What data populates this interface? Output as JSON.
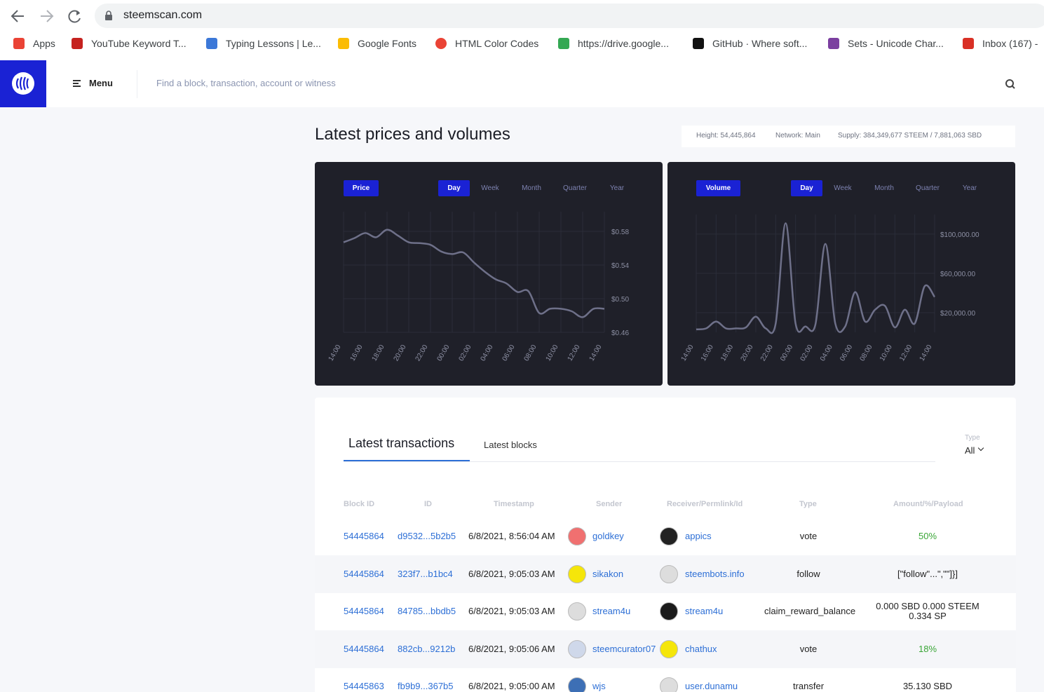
{
  "browser": {
    "url": "steemscan.com",
    "bookmarks": [
      "Apps",
      "YouTube Keyword T...",
      "Typing Lessons | Le...",
      "Google Fonts",
      "HTML Color Codes",
      "https://drive.google...",
      "GitHub · Where soft...",
      "Sets - Unicode Char...",
      "Inbox (167) -"
    ]
  },
  "header": {
    "menu": "Menu",
    "search_placeholder": "Find a block, transaction, account or witness"
  },
  "section_title": "Latest prices and volumes",
  "stats": [
    "Height: 54,445,864",
    "Network: Main",
    "Supply: 384,349,677 STEEM / 7,881,063 SBD"
  ],
  "chart_data": [
    {
      "type": "line",
      "label": "Price",
      "ranges": [
        "Day",
        "Week",
        "Month",
        "Quarter",
        "Year"
      ],
      "active_range": 0,
      "color": "#6e7089",
      "grid": true,
      "categories": [
        "14:00",
        null,
        "16:00",
        null,
        "18:00",
        null,
        "20:00",
        null,
        "22:00",
        null,
        "00:00",
        null,
        "02:00",
        null,
        "04:00",
        null,
        "06:00",
        null,
        "08:00",
        null,
        "10:00",
        null,
        "12:00",
        null,
        "14:00"
      ],
      "values": [
        0.567,
        0.572,
        0.578,
        0.573,
        0.582,
        0.575,
        0.567,
        0.566,
        0.564,
        0.556,
        0.553,
        0.555,
        0.543,
        0.532,
        0.523,
        0.518,
        0.508,
        0.509,
        0.483,
        0.488,
        0.488,
        0.485,
        0.478,
        0.488,
        0.488
      ],
      "ylim": [
        0.46,
        0.6
      ],
      "yticks": [
        {
          "value": 0.46,
          "label": "$0.46"
        },
        {
          "value": 0.5,
          "label": "$0.50"
        },
        {
          "value": 0.54,
          "label": "$0.54"
        },
        {
          "value": 0.58,
          "label": "$0.58"
        }
      ]
    },
    {
      "type": "line",
      "label": "Volume",
      "ranges": [
        "Day",
        "Week",
        "Month",
        "Quarter",
        "Year"
      ],
      "active_range": 0,
      "color": "#6e7089",
      "grid": true,
      "categories": [
        "14:00",
        null,
        "16:00",
        null,
        "18:00",
        null,
        "20:00",
        null,
        "22:00",
        null,
        "00:00",
        null,
        "02:00",
        null,
        "04:00",
        null,
        "06:00",
        null,
        "08:00",
        null,
        "10:00",
        null,
        "12:00",
        null,
        "14:00"
      ],
      "values": [
        3000,
        4000,
        11000,
        4000,
        4000,
        5000,
        16000,
        4000,
        9000,
        111000,
        9000,
        6000,
        8000,
        90000,
        9000,
        6000,
        41000,
        11000,
        23000,
        27000,
        5000,
        23000,
        9000,
        47000,
        36000
      ],
      "ylim": [
        0,
        117000
      ],
      "yticks": [
        {
          "value": 20000,
          "label": "$20,000.00"
        },
        {
          "value": 60000,
          "label": "$60,000.00"
        },
        {
          "value": 100000,
          "label": "$100,000.00"
        }
      ]
    }
  ],
  "transactions": {
    "tabs": [
      "Latest transactions",
      "Latest blocks"
    ],
    "active_tab": 0,
    "type_filter": {
      "label": "Type",
      "value": "All"
    },
    "columns": [
      "Block ID",
      "ID",
      "Timestamp",
      "Sender",
      "Receiver/Permlink/Id",
      "Type",
      "Amount/%/Payload"
    ],
    "rows": [
      [
        "54445864",
        "d9532...5b2b5",
        "6/8/2021, 8:56:04 AM",
        "goldkey",
        "appics",
        "vote",
        [
          "50%"
        ]
      ],
      [
        "54445864",
        "323f7...b1bc4",
        "6/8/2021, 9:05:03 AM",
        "sikakon",
        "steembots.info",
        "follow",
        [
          "[\"follow\"...\",\"\"]}]"
        ]
      ],
      [
        "54445864",
        "84785...bbdb5",
        "6/8/2021, 9:05:03 AM",
        "stream4u",
        "stream4u",
        "claim_reward_balance",
        [
          "0.000 SBD 0.000 STEEM",
          "0.334 SP"
        ]
      ],
      [
        "54445864",
        "882cb...9212b",
        "6/8/2021, 9:05:06 AM",
        "steemcurator07",
        "chathux",
        "vote",
        [
          "18%"
        ]
      ],
      [
        "54445863",
        "fb9b9...367b5",
        "6/8/2021, 9:05:00 AM",
        "wjs",
        "user.dunamu",
        "transfer",
        [
          "35.130 SBD"
        ]
      ]
    ]
  }
}
